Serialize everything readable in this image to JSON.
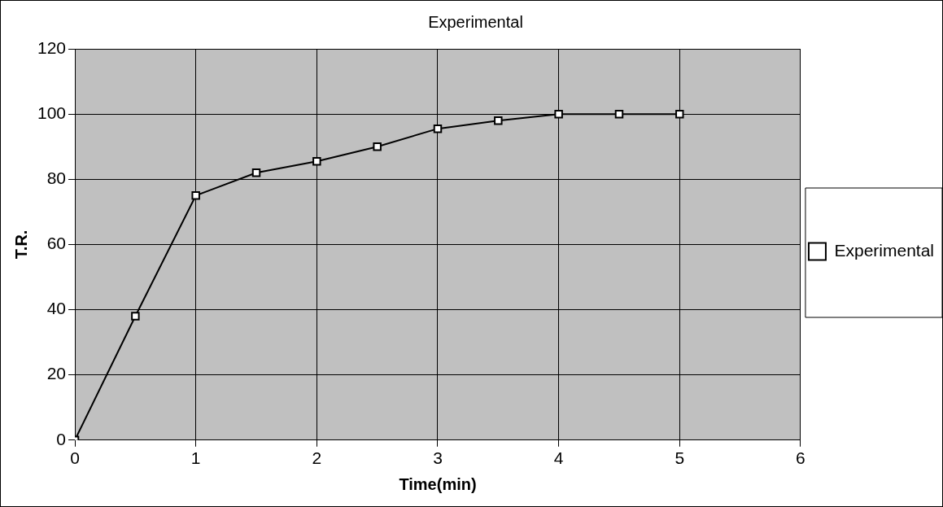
{
  "chart_data": {
    "type": "line",
    "title": "Experimental",
    "xlabel": "Time(min)",
    "ylabel": "T.R.",
    "x": [
      0,
      0.5,
      1,
      1.5,
      2,
      2.5,
      3,
      3.5,
      4,
      4.5,
      5
    ],
    "series": [
      {
        "name": "Experimental",
        "color": "#000000",
        "values": [
          0,
          38,
          75,
          82,
          85.5,
          90,
          95.5,
          98,
          100,
          100,
          100
        ]
      }
    ],
    "xlim": [
      0,
      6
    ],
    "xticks": [
      0,
      1,
      2,
      3,
      4,
      5,
      6
    ],
    "ylim": [
      0,
      120
    ],
    "yticks": [
      0,
      20,
      40,
      60,
      80,
      100,
      120
    ],
    "grid": true,
    "legend": "right",
    "marker": "square",
    "line_style": "solid"
  }
}
